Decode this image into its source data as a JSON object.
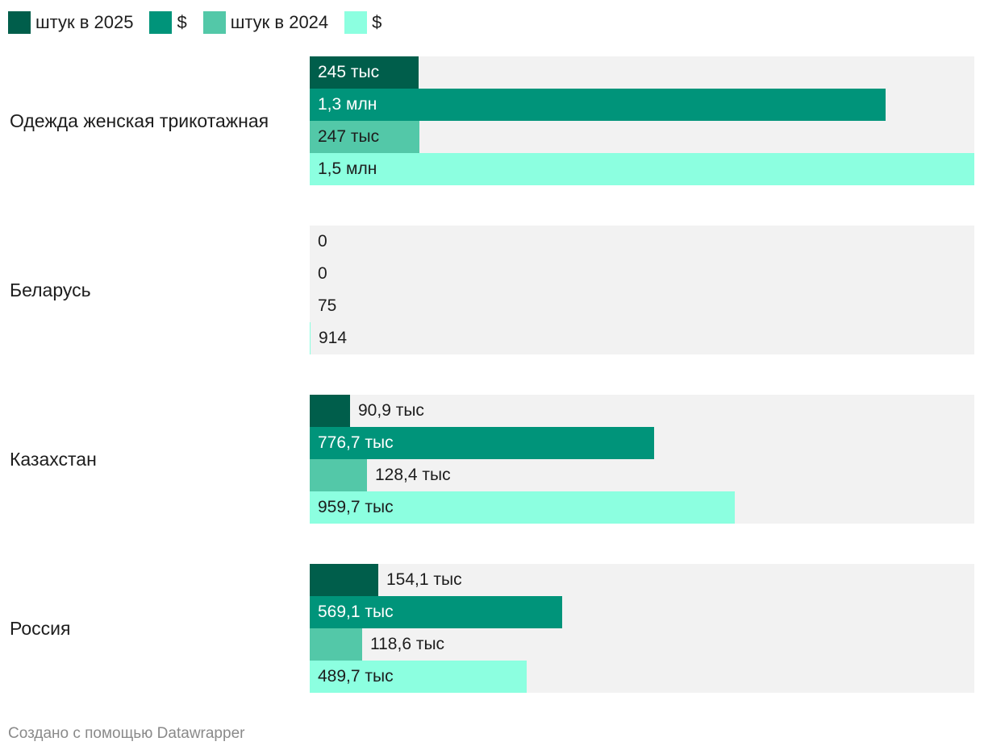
{
  "chart_data": {
    "type": "bar",
    "orientation": "horizontal",
    "title": "",
    "categories": [
      "Одежда женская трикотажная",
      "Беларусь",
      "Казахстан",
      "Россия"
    ],
    "series": [
      {
        "name": "штук в 2025",
        "color": "#005e4b",
        "values": [
          245000,
          0,
          90900,
          154100
        ],
        "labels": [
          "245 тыс",
          "0",
          "90,9 тыс",
          "154,1 тыс"
        ]
      },
      {
        "name": "$",
        "color": "#00947a",
        "values": [
          1300000,
          0,
          776700,
          569100
        ],
        "labels": [
          "1,3 млн",
          "0",
          "776,7 тыс",
          "569,1 тыс"
        ]
      },
      {
        "name": "штук в 2024",
        "color": "#53c8a8",
        "values": [
          247000,
          75,
          128400,
          118600
        ],
        "labels": [
          "247 тыс",
          "75",
          "128,4 тыс",
          "118,6 тыс"
        ]
      },
      {
        "name": "$",
        "color": "#8cffe0",
        "values": [
          1500000,
          914,
          959700,
          489700
        ],
        "labels": [
          "1,5 млн",
          "914",
          "959,7 тыс",
          "489,7 тыс"
        ]
      }
    ],
    "max": 1500000,
    "legend": "top-left"
  },
  "footer": "Создано с помощью Datawrapper"
}
